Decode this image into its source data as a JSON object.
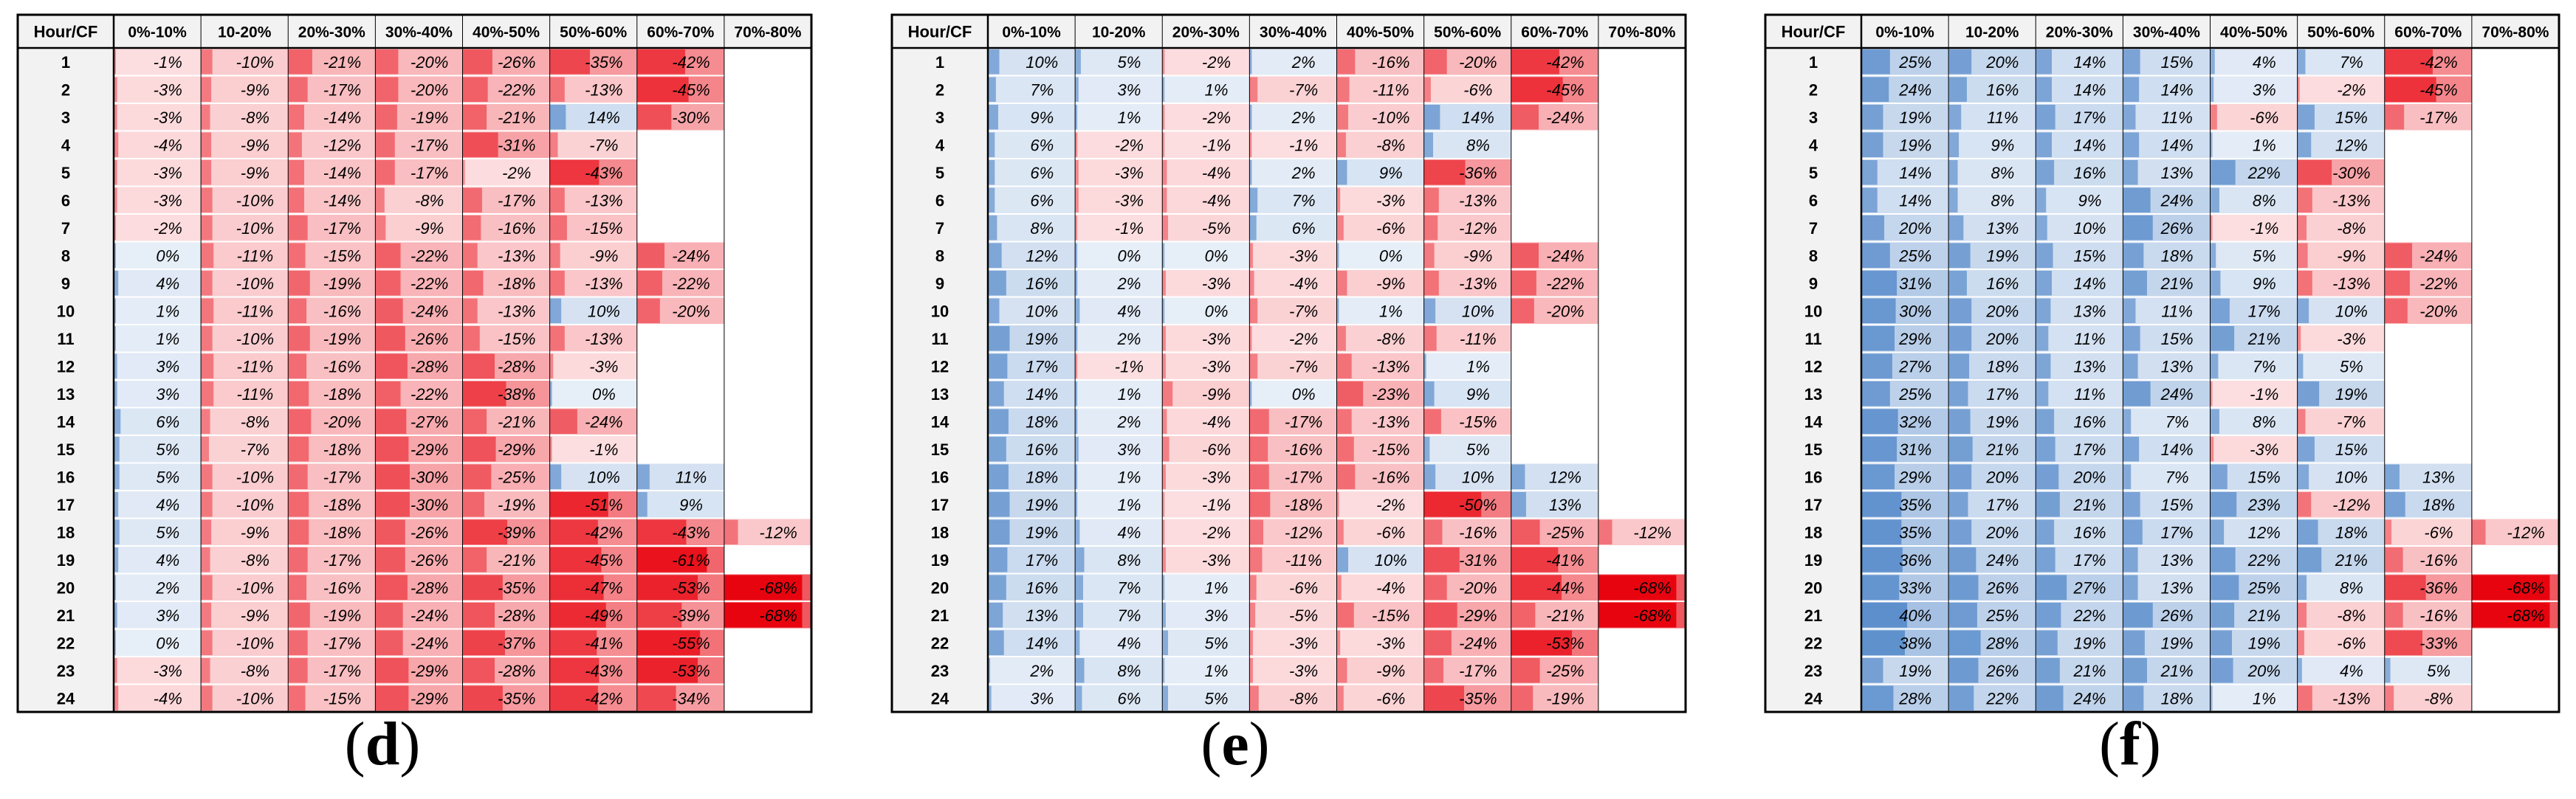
{
  "chart_data": [
    {
      "type": "heatmap",
      "panel_label": "d",
      "caption_open": "(",
      "caption_close": ")",
      "corner_label": "Hour/CF",
      "columns": [
        "0%-10%",
        "10-20%",
        "20%-30%",
        "30%-40%",
        "40%-50%",
        "50%-60%",
        "60%-70%",
        "70%-80%"
      ],
      "rows": [
        "1",
        "2",
        "3",
        "4",
        "5",
        "6",
        "7",
        "8",
        "9",
        "10",
        "11",
        "12",
        "13",
        "14",
        "15",
        "16",
        "17",
        "18",
        "19",
        "20",
        "21",
        "22",
        "23",
        "24"
      ],
      "values": [
        [
          -1,
          -10,
          -21,
          -20,
          -26,
          -35,
          -42,
          null
        ],
        [
          -3,
          -9,
          -17,
          -20,
          -22,
          -13,
          -45,
          null
        ],
        [
          -3,
          -8,
          -14,
          -19,
          -21,
          14,
          -30,
          null
        ],
        [
          -4,
          -9,
          -12,
          -17,
          -31,
          -7,
          null,
          null
        ],
        [
          -3,
          -9,
          -14,
          -17,
          -2,
          -43,
          null,
          null
        ],
        [
          -3,
          -10,
          -14,
          -8,
          -17,
          -13,
          null,
          null
        ],
        [
          -2,
          -10,
          -17,
          -9,
          -16,
          -15,
          null,
          null
        ],
        [
          0,
          -11,
          -15,
          -22,
          -13,
          -9,
          -24,
          null
        ],
        [
          4,
          -10,
          -19,
          -22,
          -18,
          -13,
          -22,
          null
        ],
        [
          1,
          -11,
          -16,
          -24,
          -13,
          10,
          -20,
          null
        ],
        [
          1,
          -10,
          -19,
          -26,
          -15,
          -13,
          null,
          null
        ],
        [
          3,
          -11,
          -16,
          -28,
          -28,
          -3,
          null,
          null
        ],
        [
          3,
          -11,
          -18,
          -22,
          -38,
          0,
          null,
          null
        ],
        [
          6,
          -8,
          -20,
          -27,
          -21,
          -24,
          null,
          null
        ],
        [
          5,
          -7,
          -18,
          -29,
          -29,
          -1,
          null,
          null
        ],
        [
          5,
          -10,
          -17,
          -30,
          -25,
          10,
          11,
          null
        ],
        [
          4,
          -10,
          -18,
          -30,
          -19,
          -51,
          9,
          null
        ],
        [
          5,
          -9,
          -18,
          -26,
          -39,
          -42,
          -43,
          -12
        ],
        [
          4,
          -8,
          -17,
          -26,
          -21,
          -45,
          -61,
          null
        ],
        [
          2,
          -10,
          -16,
          -28,
          -35,
          -47,
          -53,
          -68
        ],
        [
          3,
          -9,
          -19,
          -24,
          -28,
          -49,
          -39,
          -68
        ],
        [
          0,
          -10,
          -17,
          -24,
          -37,
          -41,
          -55,
          null
        ],
        [
          -3,
          -8,
          -17,
          -29,
          -28,
          -43,
          -53,
          null
        ],
        [
          -4,
          -10,
          -15,
          -29,
          -35,
          -42,
          -34,
          null
        ]
      ]
    },
    {
      "type": "heatmap",
      "panel_label": "e",
      "caption_open": "(",
      "caption_close": ")",
      "corner_label": "Hour/CF",
      "columns": [
        "0%-10%",
        "10-20%",
        "20%-30%",
        "30%-40%",
        "40%-50%",
        "50%-60%",
        "60%-70%",
        "70%-80%"
      ],
      "rows": [
        "1",
        "2",
        "3",
        "4",
        "5",
        "6",
        "7",
        "8",
        "9",
        "10",
        "11",
        "12",
        "13",
        "14",
        "15",
        "16",
        "17",
        "18",
        "19",
        "20",
        "21",
        "22",
        "23",
        "24"
      ],
      "values": [
        [
          10,
          5,
          -2,
          2,
          -16,
          -20,
          -42,
          null
        ],
        [
          7,
          3,
          1,
          -7,
          -11,
          -6,
          -45,
          null
        ],
        [
          9,
          1,
          -2,
          2,
          -10,
          14,
          -24,
          null
        ],
        [
          6,
          -2,
          -1,
          -1,
          -8,
          8,
          null,
          null
        ],
        [
          6,
          -3,
          -4,
          2,
          9,
          -36,
          null,
          null
        ],
        [
          6,
          -3,
          -4,
          7,
          -3,
          -13,
          null,
          null
        ],
        [
          8,
          -1,
          -5,
          6,
          -6,
          -12,
          null,
          null
        ],
        [
          12,
          0,
          0,
          -3,
          0,
          -9,
          -24,
          null
        ],
        [
          16,
          2,
          -3,
          -4,
          -9,
          -13,
          -22,
          null
        ],
        [
          10,
          4,
          0,
          -7,
          1,
          10,
          -20,
          null
        ],
        [
          19,
          2,
          -3,
          -2,
          -8,
          -11,
          null,
          null
        ],
        [
          17,
          -1,
          -3,
          -7,
          -13,
          1,
          null,
          null
        ],
        [
          14,
          1,
          -9,
          0,
          -23,
          9,
          null,
          null
        ],
        [
          18,
          2,
          -4,
          -17,
          -13,
          -15,
          null,
          null
        ],
        [
          16,
          3,
          -6,
          -16,
          -15,
          5,
          null,
          null
        ],
        [
          18,
          1,
          -3,
          -17,
          -16,
          10,
          12,
          null
        ],
        [
          19,
          1,
          -1,
          -18,
          -2,
          -50,
          13,
          null
        ],
        [
          19,
          4,
          -2,
          -12,
          -6,
          -16,
          -25,
          -12
        ],
        [
          17,
          8,
          -3,
          -11,
          10,
          -31,
          -41,
          null
        ],
        [
          16,
          7,
          1,
          -6,
          -4,
          -20,
          -44,
          -68
        ],
        [
          13,
          7,
          3,
          -5,
          -15,
          -29,
          -21,
          -68
        ],
        [
          14,
          4,
          5,
          -3,
          -3,
          -24,
          -53,
          null
        ],
        [
          2,
          8,
          1,
          -3,
          -9,
          -17,
          -25,
          null
        ],
        [
          3,
          6,
          5,
          -8,
          -6,
          -35,
          -19,
          null
        ]
      ]
    },
    {
      "type": "heatmap",
      "panel_label": "f",
      "caption_open": "(",
      "caption_close": ")",
      "corner_label": "Hour/CF",
      "columns": [
        "0%-10%",
        "10-20%",
        "20%-30%",
        "30%-40%",
        "40%-50%",
        "50%-60%",
        "60%-70%",
        "70%-80%"
      ],
      "rows": [
        "1",
        "2",
        "3",
        "4",
        "5",
        "6",
        "7",
        "8",
        "9",
        "10",
        "11",
        "12",
        "13",
        "14",
        "15",
        "16",
        "17",
        "18",
        "19",
        "20",
        "21",
        "22",
        "23",
        "24"
      ],
      "values": [
        [
          25,
          20,
          14,
          15,
          4,
          7,
          -42,
          null
        ],
        [
          24,
          16,
          14,
          14,
          3,
          -2,
          -45,
          null
        ],
        [
          19,
          11,
          17,
          11,
          -6,
          15,
          -17,
          null
        ],
        [
          19,
          9,
          14,
          14,
          1,
          12,
          null,
          null
        ],
        [
          14,
          8,
          16,
          13,
          22,
          -30,
          null,
          null
        ],
        [
          14,
          8,
          9,
          24,
          8,
          -13,
          null,
          null
        ],
        [
          20,
          13,
          10,
          26,
          -1,
          -8,
          null,
          null
        ],
        [
          25,
          19,
          15,
          18,
          5,
          -9,
          -24,
          null
        ],
        [
          31,
          16,
          14,
          21,
          9,
          -13,
          -22,
          null
        ],
        [
          30,
          20,
          13,
          11,
          17,
          10,
          -20,
          null
        ],
        [
          29,
          20,
          11,
          15,
          21,
          -3,
          null,
          null
        ],
        [
          27,
          18,
          13,
          13,
          7,
          5,
          null,
          null
        ],
        [
          25,
          17,
          11,
          24,
          -1,
          19,
          null,
          null
        ],
        [
          32,
          19,
          16,
          7,
          8,
          -7,
          null,
          null
        ],
        [
          31,
          21,
          17,
          14,
          -3,
          15,
          null,
          null
        ],
        [
          29,
          20,
          20,
          7,
          15,
          10,
          13,
          null
        ],
        [
          35,
          17,
          21,
          15,
          23,
          -12,
          18,
          null
        ],
        [
          35,
          20,
          16,
          17,
          12,
          18,
          -6,
          -12
        ],
        [
          36,
          24,
          17,
          13,
          22,
          21,
          -16,
          null
        ],
        [
          33,
          26,
          27,
          13,
          25,
          8,
          -36,
          -68
        ],
        [
          40,
          25,
          22,
          26,
          21,
          -8,
          -16,
          -68
        ],
        [
          38,
          28,
          19,
          19,
          19,
          -6,
          -33,
          null
        ],
        [
          19,
          26,
          21,
          21,
          20,
          4,
          5,
          null
        ],
        [
          28,
          22,
          24,
          18,
          1,
          -13,
          -8,
          null
        ]
      ]
    }
  ],
  "colors": {
    "positive": "#2f6fbe",
    "negative": "#e8000b",
    "header_fill": "#f2f2f2",
    "border": "#000000"
  }
}
